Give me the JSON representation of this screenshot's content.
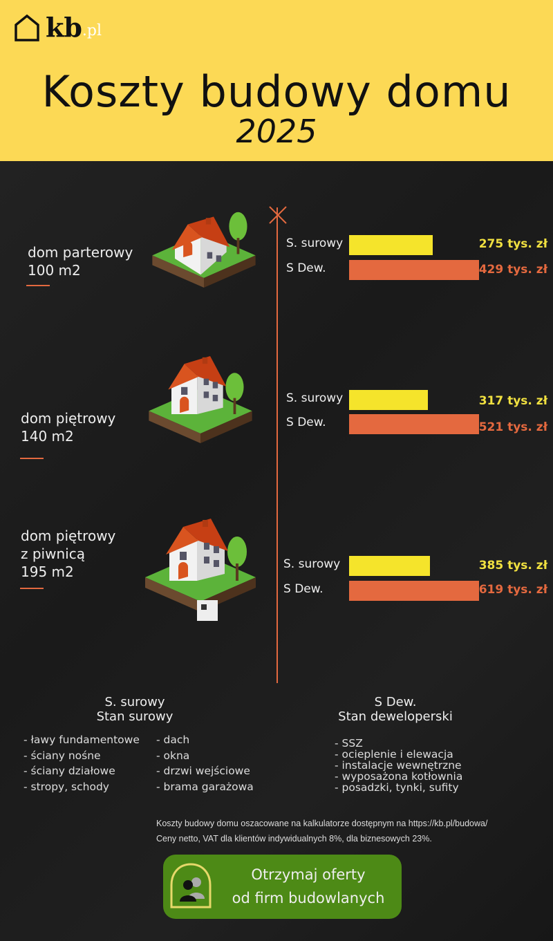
{
  "header": {
    "logo": {
      "brand": "kb",
      "tld": ".pl"
    },
    "title": "Koszty budowy domu",
    "year": "2025"
  },
  "colors": {
    "header": "#fcd955",
    "surowy": "#f5e42b",
    "deweloperski": "#e4693f",
    "cta": "#4d8a16"
  },
  "chart_data": {
    "type": "bar",
    "orientation": "horizontal",
    "categories": [
      "dom parterowy 100 m2",
      "dom piętrowy 140 m2",
      "dom piętrowy z piwnicą 195 m2"
    ],
    "series": [
      {
        "name": "S. surowy",
        "values": [
          275,
          317,
          385
        ],
        "labels": [
          "275 tys. zł",
          "317 tys. zł",
          "385 tys. zł"
        ]
      },
      {
        "name": "S Dew.",
        "values": [
          429,
          521,
          619
        ],
        "labels": [
          "429 tys. zł",
          "521 tys. zł",
          "619 tys. zł"
        ]
      }
    ],
    "unit": "tys. zł"
  },
  "houses": [
    {
      "lines": [
        "dom parterowy",
        "100 m2"
      ]
    },
    {
      "lines": [
        "dom piętrowy",
        "140 m2"
      ]
    },
    {
      "lines": [
        "dom piętrowy",
        "z piwnicą",
        "195 m2"
      ]
    }
  ],
  "legend": {
    "surowy": {
      "short": "S. surowy",
      "full": "Stan surowy",
      "col1": [
        "- ławy fundamentowe",
        "- ściany nośne",
        "- ściany działowe",
        "- stropy, schody"
      ],
      "col2": [
        "- dach",
        "- okna",
        "- drzwi wejściowe",
        "- brama garażowa"
      ]
    },
    "deweloperski": {
      "short": "S Dew.",
      "full": "Stan deweloperski",
      "items": [
        "- SSZ",
        "- ocieplenie i elewacja",
        "- instalacje wewnętrzne",
        "- wyposażona kotłownia",
        "- posadzki, tynki, sufity"
      ]
    }
  },
  "note": [
    "Koszty budowy domu oszacowane na kalkulatorze dostępnym na https://kb.pl/budowa/",
    "Ceny netto, VAT dla klientów indywidualnych 8%, dla biznesowych 23%."
  ],
  "cta": {
    "line1": "Otrzymaj oferty",
    "line2": "od firm budowlanych",
    "icon": "users-icon"
  }
}
